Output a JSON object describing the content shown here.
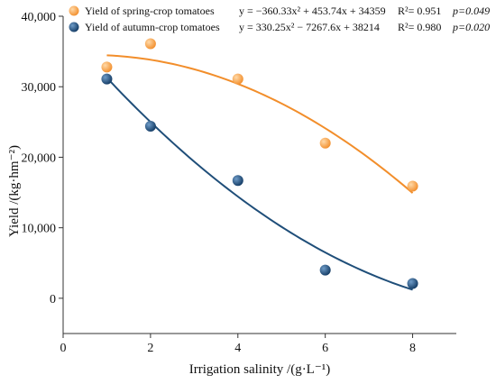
{
  "chart_data": {
    "type": "scatter",
    "xlabel": "Irrigation salinity /(g·L⁻¹)",
    "ylabel": "Yield  /(kg·hm⁻²)",
    "xlim": [
      0,
      9
    ],
    "ylim": [
      -5000,
      40000
    ],
    "x_ticks": [
      0,
      2,
      4,
      6,
      8
    ],
    "y_ticks": [
      0,
      10000,
      20000,
      30000,
      40000
    ],
    "y_tick_labels": [
      "0",
      "10,000",
      "20,000",
      "30,000",
      "40,000"
    ],
    "grid": false,
    "legend_position": "top-left",
    "series": [
      {
        "name": "Yield of spring-crop tomatoes",
        "color": "#f28e2b",
        "x": [
          1,
          2,
          4,
          6,
          8
        ],
        "y": [
          32800,
          36100,
          31100,
          22000,
          15900
        ],
        "fit": {
          "a": -360.33,
          "b": 453.74,
          "c": 34359
        },
        "equation": "y = −360.33x² + 453.74x + 34359",
        "r2": "R²= 0.951",
        "p": "p=0.049"
      },
      {
        "name": "Yield of autumn-crop tomatoes",
        "color": "#1f4e79",
        "x": [
          1,
          2,
          4,
          6,
          8
        ],
        "y": [
          31100,
          24400,
          16700,
          4000,
          2100
        ],
        "fit": {
          "a": 330.25,
          "b": -7267.6,
          "c": 38214
        },
        "equation": "y = 330.25x² − 7267.6x + 38214",
        "r2": "R²= 0.980",
        "p": "p=0.020"
      }
    ]
  }
}
